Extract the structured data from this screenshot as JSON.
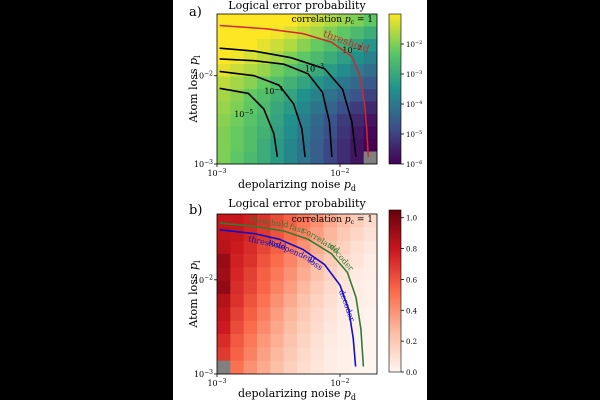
{
  "figure": {
    "background": "#ffffff",
    "page_background": "#000000"
  },
  "chart_data": [
    {
      "type": "heatmap",
      "panel_label": "a)",
      "title": "Logical error probability",
      "xlabel": "depolarizing noise p_d",
      "ylabel": "Atom loss p_l",
      "xscale": "log",
      "yscale": "log",
      "xlim": [
        0.001,
        0.02
      ],
      "ylim": [
        0.001,
        0.05
      ],
      "x_ticks": [
        {
          "base": "10",
          "exp": "−3",
          "value": 0.001
        },
        {
          "base": "10",
          "exp": "−2",
          "value": 0.01
        }
      ],
      "y_ticks": [
        {
          "base": "10",
          "exp": "−3",
          "value": 0.001
        },
        {
          "base": "10",
          "exp": "−2",
          "value": 0.01
        }
      ],
      "annotation": "correlation p_c = 1",
      "grid_size": 12,
      "exponent_grid": [
        [
          -0.5,
          -0.5,
          -0.6,
          -0.7,
          -0.8,
          -1.0,
          -1.2,
          -1.4,
          -1.6,
          -1.8,
          -2.0,
          -2.3
        ],
        [
          -0.6,
          -0.7,
          -0.8,
          -0.9,
          -1.1,
          -1.3,
          -1.5,
          -1.7,
          -2.0,
          -2.3,
          -2.6,
          -2.9
        ],
        [
          -0.8,
          -0.9,
          -1.0,
          -1.2,
          -1.4,
          -1.6,
          -1.9,
          -2.2,
          -2.5,
          -2.8,
          -3.1,
          -3.4
        ],
        [
          -1.0,
          -1.1,
          -1.3,
          -1.5,
          -1.7,
          -2.0,
          -2.3,
          -2.6,
          -2.9,
          -3.2,
          -3.5,
          -3.8
        ],
        [
          -1.2,
          -1.4,
          -1.6,
          -1.8,
          -2.1,
          -2.4,
          -2.7,
          -3.0,
          -3.3,
          -3.6,
          -3.9,
          -4.2
        ],
        [
          -1.5,
          -1.7,
          -1.9,
          -2.2,
          -2.5,
          -2.8,
          -3.1,
          -3.4,
          -3.7,
          -4.0,
          -4.3,
          -4.6
        ],
        [
          -1.7,
          -1.9,
          -2.2,
          -2.5,
          -2.8,
          -3.1,
          -3.5,
          -3.8,
          -4.1,
          -4.4,
          -4.7,
          -5.0
        ],
        [
          -1.8,
          -2.0,
          -2.3,
          -2.6,
          -3.0,
          -3.3,
          -3.7,
          -4.1,
          -4.4,
          -4.8,
          -5.1,
          -5.4
        ],
        [
          -1.9,
          -2.1,
          -2.4,
          -2.7,
          -3.1,
          -3.5,
          -3.9,
          -4.3,
          -4.7,
          -5.1,
          -5.4,
          -5.7
        ],
        [
          -2.0,
          -2.2,
          -2.5,
          -2.8,
          -3.2,
          -3.6,
          -4.0,
          -4.4,
          -4.8,
          -5.2,
          -5.6,
          -5.9
        ],
        [
          -2.0,
          -2.2,
          -2.5,
          -2.9,
          -3.3,
          -3.7,
          -4.1,
          -4.5,
          -4.9,
          -5.3,
          -5.7,
          -6.0
        ],
        [
          -2.0,
          -2.3,
          -2.6,
          -2.9,
          -3.3,
          -3.7,
          -4.1,
          -4.5,
          -4.9,
          -5.3,
          -5.7,
          null
        ]
      ],
      "missing_color": "#808080",
      "contours": [
        {
          "label": "10",
          "label_exp": "−2",
          "label_x": 0.0125,
          "label_y": 0.018,
          "points": [
            [
              0.00105,
              0.0205
            ],
            [
              0.002,
              0.019
            ],
            [
              0.004,
              0.016
            ],
            [
              0.0075,
              0.012
            ],
            [
              0.0105,
              0.007
            ],
            [
              0.0125,
              0.003
            ],
            [
              0.0135,
              0.0012
            ]
          ]
        },
        {
          "label": "10",
          "label_exp": "−3",
          "label_x": 0.0062,
          "label_y": 0.0112,
          "points": [
            [
              0.00105,
              0.0155
            ],
            [
              0.002,
              0.0148
            ],
            [
              0.0035,
              0.0135
            ],
            [
              0.0055,
              0.0105
            ],
            [
              0.0072,
              0.0065
            ],
            [
              0.0082,
              0.003
            ],
            [
              0.0086,
              0.0012
            ]
          ]
        },
        {
          "label": "10",
          "label_exp": "−4",
          "label_x": 0.0029,
          "label_y": 0.0062,
          "points": [
            [
              0.00105,
              0.0112
            ],
            [
              0.002,
              0.01
            ],
            [
              0.0032,
              0.0078
            ],
            [
              0.0042,
              0.0048
            ],
            [
              0.0049,
              0.0025
            ],
            [
              0.0052,
              0.0012
            ]
          ]
        },
        {
          "label": "10",
          "label_exp": "−5",
          "label_x": 0.00165,
          "label_y": 0.0034,
          "points": [
            [
              0.00105,
              0.0072
            ],
            [
              0.0018,
              0.0063
            ],
            [
              0.0024,
              0.0042
            ],
            [
              0.0029,
              0.0022
            ],
            [
              0.0031,
              0.0012
            ]
          ]
        }
      ],
      "threshold": {
        "label": "threshold",
        "color": "#d62728",
        "label_x": 0.0072,
        "label_y": 0.028,
        "points": [
          [
            0.00105,
            0.037
          ],
          [
            0.0025,
            0.034
          ],
          [
            0.005,
            0.03
          ],
          [
            0.0085,
            0.024
          ],
          [
            0.0125,
            0.0165
          ],
          [
            0.0145,
            0.01
          ],
          [
            0.0158,
            0.005
          ],
          [
            0.0165,
            0.0025
          ],
          [
            0.017,
            0.0012
          ]
        ]
      },
      "colorbar": {
        "colormap": "viridis",
        "range_exp": [
          -6,
          -1
        ],
        "ticks": [
          {
            "base": "10",
            "exp": "−2",
            "value_exp": -2
          },
          {
            "base": "10",
            "exp": "−3",
            "value_exp": -3
          },
          {
            "base": "10",
            "exp": "−4",
            "value_exp": -4
          },
          {
            "base": "10",
            "exp": "−5",
            "value_exp": -5
          },
          {
            "base": "10",
            "exp": "−6",
            "value_exp": -6
          }
        ]
      }
    },
    {
      "type": "heatmap",
      "panel_label": "b)",
      "title": "Logical error probability",
      "xlabel": "depolarizing noise p_d",
      "ylabel": "Atom loss p_l",
      "xscale": "log",
      "yscale": "log",
      "xlim": [
        0.001,
        0.02
      ],
      "ylim": [
        0.001,
        0.05
      ],
      "x_ticks": [
        {
          "base": "10",
          "exp": "−3",
          "value": 0.001
        },
        {
          "base": "10",
          "exp": "−2",
          "value": 0.01
        }
      ],
      "y_ticks": [
        {
          "base": "10",
          "exp": "−3",
          "value": 0.001
        },
        {
          "base": "10",
          "exp": "−2",
          "value": 0.01
        }
      ],
      "annotation": "correlation p_c = 1",
      "grid_size": 12,
      "value_grid": [
        [
          0.8,
          0.8,
          0.76,
          0.7,
          0.62,
          0.55,
          0.48,
          0.4,
          0.32,
          0.25,
          0.18,
          0.12
        ],
        [
          0.82,
          0.8,
          0.74,
          0.68,
          0.6,
          0.52,
          0.45,
          0.36,
          0.28,
          0.2,
          0.14,
          0.09
        ],
        [
          0.84,
          0.78,
          0.72,
          0.64,
          0.56,
          0.48,
          0.4,
          0.31,
          0.23,
          0.16,
          0.1,
          0.06
        ],
        [
          0.92,
          0.76,
          0.7,
          0.6,
          0.52,
          0.44,
          0.35,
          0.27,
          0.19,
          0.12,
          0.08,
          0.04
        ],
        [
          0.9,
          0.74,
          0.66,
          0.56,
          0.48,
          0.4,
          0.31,
          0.23,
          0.15,
          0.09,
          0.05,
          0.03
        ],
        [
          0.94,
          0.72,
          0.64,
          0.54,
          0.44,
          0.36,
          0.27,
          0.19,
          0.12,
          0.07,
          0.04,
          0.02
        ],
        [
          0.85,
          0.7,
          0.6,
          0.5,
          0.4,
          0.32,
          0.23,
          0.16,
          0.1,
          0.05,
          0.03,
          0.02
        ],
        [
          0.82,
          0.66,
          0.56,
          0.46,
          0.36,
          0.28,
          0.2,
          0.13,
          0.08,
          0.04,
          0.02,
          0.01
        ],
        [
          0.78,
          0.62,
          0.52,
          0.42,
          0.33,
          0.25,
          0.17,
          0.11,
          0.06,
          0.03,
          0.02,
          0.01
        ],
        [
          0.72,
          0.58,
          0.48,
          0.38,
          0.3,
          0.22,
          0.15,
          0.09,
          0.05,
          0.03,
          0.01,
          0.01
        ],
        [
          0.68,
          0.55,
          0.45,
          0.35,
          0.27,
          0.2,
          0.13,
          0.08,
          0.04,
          0.02,
          0.01,
          0.01
        ],
        [
          null,
          0.5,
          0.4,
          0.32,
          0.24,
          0.17,
          0.11,
          0.07,
          0.04,
          0.02,
          0.01,
          0.0
        ]
      ],
      "missing_color": "#808080",
      "curves": [
        {
          "name": "threshold fast correlated decoder",
          "words": [
            "threshold",
            "fast",
            "correlated",
            "decoder"
          ],
          "color": "#2e7d32",
          "points": [
            [
              0.00105,
              0.04
            ],
            [
              0.002,
              0.037
            ],
            [
              0.0035,
              0.033
            ],
            [
              0.0055,
              0.027
            ],
            [
              0.0085,
              0.019
            ],
            [
              0.0115,
              0.012
            ],
            [
              0.0135,
              0.0065
            ],
            [
              0.0148,
              0.003
            ],
            [
              0.0155,
              0.0012
            ]
          ]
        },
        {
          "name": "threshold independent loss decoder",
          "words": [
            "threshold",
            "independent",
            "loss",
            "decoder"
          ],
          "color": "#1010c8",
          "points": [
            [
              0.00105,
              0.034
            ],
            [
              0.002,
              0.031
            ],
            [
              0.0032,
              0.027
            ],
            [
              0.005,
              0.021
            ],
            [
              0.0075,
              0.0145
            ],
            [
              0.01,
              0.0088
            ],
            [
              0.0118,
              0.0048
            ],
            [
              0.0128,
              0.0024
            ],
            [
              0.0134,
              0.0012
            ]
          ]
        }
      ],
      "colorbar": {
        "colormap": "Reds",
        "range": [
          0.0,
          1.05
        ],
        "ticks": [
          "0.0",
          "0.2",
          "0.4",
          "0.6",
          "0.8",
          "1.0"
        ]
      }
    }
  ]
}
